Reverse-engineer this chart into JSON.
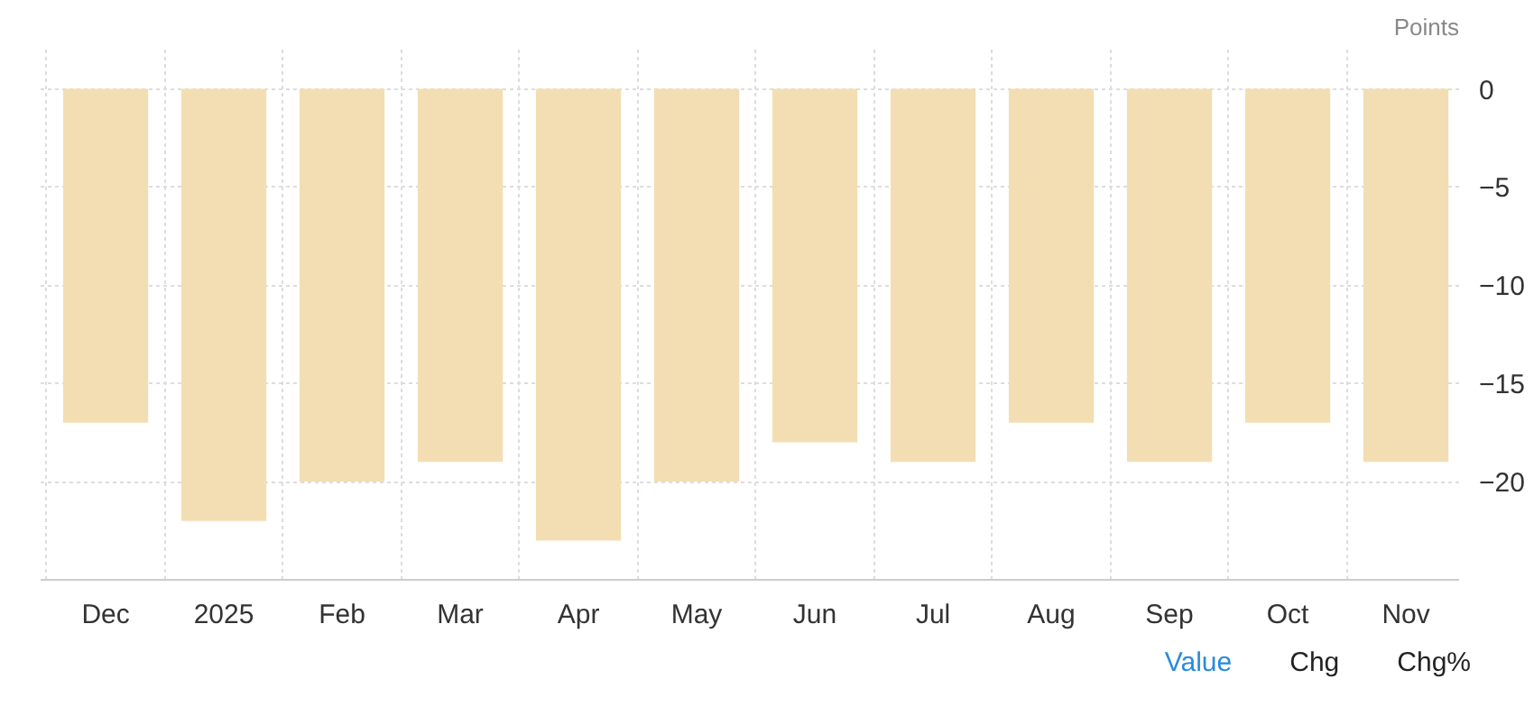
{
  "chart_data": {
    "type": "bar",
    "ylabel": "Points",
    "categories": [
      "Dec",
      "2025",
      "Feb",
      "Mar",
      "Apr",
      "May",
      "Jun",
      "Jul",
      "Aug",
      "Sep",
      "Oct",
      "Nov"
    ],
    "values": [
      -17,
      -22,
      -20,
      -19,
      -23,
      -20,
      -18,
      -19,
      -17,
      -19,
      -17,
      -19
    ],
    "color": "#f3deb3",
    "ylim": [
      -25,
      2
    ],
    "yticks": [
      -20,
      -15,
      -10,
      -5,
      0
    ],
    "grid": true,
    "annotations": [
      "Value",
      "Chg",
      "Chg%"
    ]
  }
}
